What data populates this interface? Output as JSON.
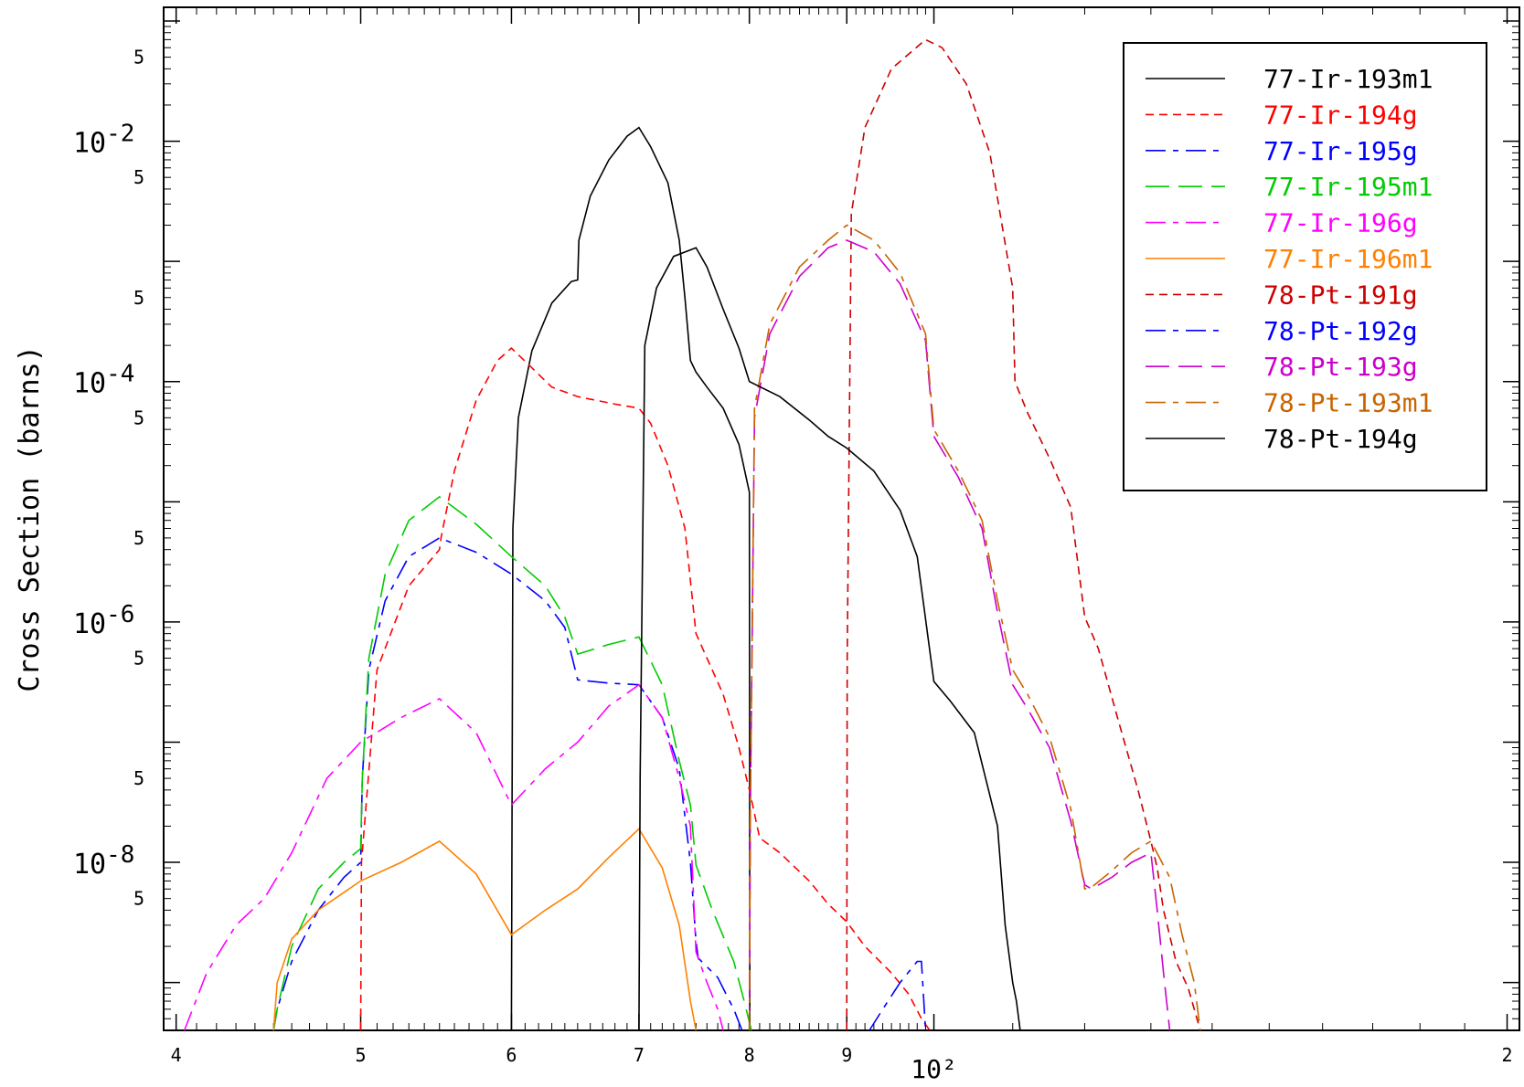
{
  "chart_data": {
    "type": "line",
    "title": "",
    "xlabel": "10²",
    "ylabel": "Cross Section (barns)",
    "x_scale": "log",
    "y_scale": "log",
    "xlim": [
      39.4,
      203
    ],
    "ylim": [
      4e-10,
      0.13
    ],
    "grid": false,
    "legend_position": "top-right",
    "x_tick_labels": [
      {
        "x": 40,
        "label": "4"
      },
      {
        "x": 50,
        "label": "5"
      },
      {
        "x": 60,
        "label": "6"
      },
      {
        "x": 70,
        "label": "7"
      },
      {
        "x": 80,
        "label": "8"
      },
      {
        "x": 90,
        "label": "9"
      },
      {
        "x": 100,
        "label": "10²"
      },
      {
        "x": 200,
        "label": "2"
      }
    ],
    "y_tick_labels": [
      {
        "y": 0.05,
        "label": "5"
      },
      {
        "y": 0.01,
        "label": "10-2"
      },
      {
        "y": 0.005,
        "label": "5"
      },
      {
        "y": 0.0005,
        "label": "5"
      },
      {
        "y": 0.0001,
        "label": "10-4"
      },
      {
        "y": 5e-05,
        "label": "5"
      },
      {
        "y": 5e-06,
        "label": "5"
      },
      {
        "y": 1e-06,
        "label": "10-6"
      },
      {
        "y": 5e-07,
        "label": "5"
      },
      {
        "y": 5e-08,
        "label": "5"
      },
      {
        "y": 1e-08,
        "label": "10-8"
      },
      {
        "y": 5e-09,
        "label": "5"
      }
    ],
    "series": [
      {
        "name": "77-Ir-193m1",
        "color": "#000000",
        "dash": "solid",
        "points": [
          [
            60,
            4e-10
          ],
          [
            60.1,
            6e-06
          ],
          [
            60.5,
            5e-05
          ],
          [
            61.5,
            0.00018
          ],
          [
            63,
            0.00045
          ],
          [
            64.5,
            0.00068
          ],
          [
            65,
            0.0007
          ],
          [
            65.1,
            0.0015
          ],
          [
            66,
            0.0035
          ],
          [
            67.5,
            0.007
          ],
          [
            69,
            0.011
          ],
          [
            70,
            0.013
          ],
          [
            71,
            0.009
          ],
          [
            72.5,
            0.0045
          ],
          [
            73.5,
            0.0015
          ],
          [
            74,
            0.0005
          ],
          [
            74.5,
            0.00015
          ],
          [
            75,
            0.00012
          ],
          [
            76,
            9e-05
          ],
          [
            77.5,
            6e-05
          ],
          [
            79,
            3e-05
          ],
          [
            80,
            1.2e-05
          ],
          [
            80.05,
            4e-10
          ]
        ]
      },
      {
        "name": "77-Ir-194g",
        "color": "#ff0000",
        "dash": "short",
        "points": [
          [
            50,
            4e-10
          ],
          [
            50.05,
            1e-08
          ],
          [
            51,
            4e-07
          ],
          [
            53,
            2e-06
          ],
          [
            55,
            4e-06
          ],
          [
            55.1,
            5e-06
          ],
          [
            56,
            1.8e-05
          ],
          [
            57.5,
            7e-05
          ],
          [
            59,
            0.00015
          ],
          [
            60,
            0.00019
          ],
          [
            61.5,
            0.00013
          ],
          [
            63,
            9e-05
          ],
          [
            65,
            7.5e-05
          ],
          [
            68,
            6.5e-05
          ],
          [
            70,
            6e-05
          ],
          [
            71,
            4.5e-05
          ],
          [
            72.5,
            2e-05
          ],
          [
            74,
            6e-06
          ],
          [
            75,
            8e-07
          ],
          [
            76,
            5e-07
          ],
          [
            77.5,
            2.5e-07
          ],
          [
            79,
            9e-08
          ],
          [
            80,
            4e-08
          ],
          [
            81,
            1.6e-08
          ],
          [
            83,
            1.2e-08
          ],
          [
            86,
            7e-09
          ],
          [
            88,
            4.5e-09
          ],
          [
            90,
            3.2e-09
          ],
          [
            92,
            2e-09
          ],
          [
            95,
            1.2e-09
          ],
          [
            97,
            8e-10
          ],
          [
            98.5,
            5e-10
          ],
          [
            99.5,
            4e-10
          ]
        ]
      },
      {
        "name": "77-Ir-195g",
        "color": "#0000ff",
        "dash": "dashdot",
        "points": [
          [
            45,
            4e-10
          ],
          [
            45.2,
            6e-10
          ],
          [
            46,
            1.5e-09
          ],
          [
            47.5,
            4e-09
          ],
          [
            49,
            7.5e-09
          ],
          [
            50,
            1e-08
          ],
          [
            50.1,
            5e-08
          ],
          [
            50.5,
            4e-07
          ],
          [
            51.5,
            1.5e-06
          ],
          [
            53,
            3.5e-06
          ],
          [
            55,
            5e-06
          ],
          [
            57.5,
            3.8e-06
          ],
          [
            60,
            2.5e-06
          ],
          [
            62.5,
            1.5e-06
          ],
          [
            64,
            9e-07
          ],
          [
            65,
            3.3e-07
          ],
          [
            67.5,
            3.1e-07
          ],
          [
            70,
            3e-07
          ],
          [
            72,
            1.6e-07
          ],
          [
            73.5,
            6e-08
          ],
          [
            74.5,
            1e-08
          ],
          [
            75,
            2.2e-09
          ],
          [
            75.2,
            1.6e-09
          ],
          [
            77,
            1.1e-09
          ],
          [
            78.5,
            6e-10
          ],
          [
            79.3,
            4e-10
          ]
        ]
      },
      {
        "name": "77-Ir-195m1",
        "color": "#00cc00",
        "dash": "long",
        "points": [
          [
            45,
            4e-10
          ],
          [
            45.2,
            6e-10
          ],
          [
            46,
            2e-09
          ],
          [
            47.5,
            6e-09
          ],
          [
            49,
            1e-08
          ],
          [
            50,
            1.3e-08
          ],
          [
            50.1,
            5e-08
          ],
          [
            50.5,
            5e-07
          ],
          [
            51.5,
            2.5e-06
          ],
          [
            53,
            7e-06
          ],
          [
            55,
            1.1e-05
          ],
          [
            57.5,
            6.5e-06
          ],
          [
            60,
            3.5e-06
          ],
          [
            62.5,
            2e-06
          ],
          [
            64,
            1.1e-06
          ],
          [
            65,
            5.4e-07
          ],
          [
            67.5,
            6.5e-07
          ],
          [
            70,
            7.5e-07
          ],
          [
            72,
            3e-07
          ],
          [
            73.5,
            7e-08
          ],
          [
            74.5,
            3e-08
          ],
          [
            75,
            9.5e-09
          ],
          [
            76.5,
            4e-09
          ],
          [
            78.5,
            1.5e-09
          ],
          [
            79.5,
            7e-10
          ],
          [
            80.2,
            4e-10
          ]
        ]
      },
      {
        "name": "77-Ir-196g",
        "color": "#ff00ff",
        "dash": "dashdot",
        "points": [
          [
            40.4,
            4e-10
          ],
          [
            41.5,
            1.2e-09
          ],
          [
            43,
            3e-09
          ],
          [
            44.5,
            5e-09
          ],
          [
            46,
            1.2e-08
          ],
          [
            48,
            5e-08
          ],
          [
            50,
            1e-07
          ],
          [
            52.5,
            1.6e-07
          ],
          [
            55,
            2.3e-07
          ],
          [
            57.5,
            1.2e-07
          ],
          [
            60,
            3e-08
          ],
          [
            62.5,
            6e-08
          ],
          [
            65,
            1e-07
          ],
          [
            67.5,
            2e-07
          ],
          [
            70,
            3e-07
          ],
          [
            72,
            1.6e-07
          ],
          [
            73.5,
            5e-08
          ],
          [
            74.5,
            2e-08
          ],
          [
            75,
            1.8e-09
          ],
          [
            75.2,
            1.6e-09
          ],
          [
            76,
            1e-09
          ],
          [
            77,
            6e-10
          ],
          [
            77.5,
            4e-10
          ]
        ]
      },
      {
        "name": "77-Ir-196m1",
        "color": "#ff8000",
        "dash": "solid",
        "points": [
          [
            45,
            4e-10
          ],
          [
            45.2,
            1e-09
          ],
          [
            46,
            2.3e-09
          ],
          [
            47.5,
            4e-09
          ],
          [
            50,
            7e-09
          ],
          [
            52.5,
            1e-08
          ],
          [
            55,
            1.5e-08
          ],
          [
            57.5,
            8e-09
          ],
          [
            60,
            2.5e-09
          ],
          [
            62.5,
            4e-09
          ],
          [
            65,
            6e-09
          ],
          [
            67.5,
            1.1e-08
          ],
          [
            70,
            1.9e-08
          ],
          [
            72,
            9e-09
          ],
          [
            73.5,
            3e-09
          ],
          [
            74.5,
            7e-10
          ],
          [
            75,
            4e-10
          ]
        ]
      },
      {
        "name": "78-Pt-191g",
        "color": "#cc0000",
        "dash": "short",
        "points": [
          [
            90,
            4e-10
          ],
          [
            90.05,
            5e-07
          ],
          [
            90.5,
            0.0025
          ],
          [
            92,
            0.013
          ],
          [
            95,
            0.04
          ],
          [
            99,
            0.07
          ],
          [
            101,
            0.06
          ],
          [
            104,
            0.03
          ],
          [
            107,
            0.008
          ],
          [
            110,
            0.0006
          ],
          [
            110.3,
            0.0001
          ],
          [
            112,
            5.5e-05
          ],
          [
            115,
            2.3e-05
          ],
          [
            118,
            9e-06
          ],
          [
            120,
            1.1e-06
          ],
          [
            122,
            6e-07
          ],
          [
            125,
            1.5e-07
          ],
          [
            128,
            4e-08
          ],
          [
            130,
            1.5e-08
          ],
          [
            131,
            9e-09
          ],
          [
            132,
            4e-09
          ],
          [
            134,
            1.5e-09
          ],
          [
            136,
            9e-10
          ],
          [
            137,
            6e-10
          ],
          [
            138,
            4e-10
          ]
        ]
      },
      {
        "name": "78-Pt-192g",
        "color": "#0000ff",
        "dash": "dashdot",
        "points": [
          [
            92.5,
            4e-10
          ],
          [
            94,
            6e-10
          ],
          [
            96,
            1e-09
          ],
          [
            98,
            1.5e-09
          ],
          [
            98.5,
            1.5e-09
          ],
          [
            99,
            4e-10
          ]
        ]
      },
      {
        "name": "78-Pt-193g",
        "color": "#cc00cc",
        "dash": "long",
        "points": [
          [
            80,
            4e-10
          ],
          [
            80.1,
            3e-08
          ],
          [
            80.5,
            5e-05
          ],
          [
            82,
            0.00025
          ],
          [
            85,
            0.00075
          ],
          [
            88,
            0.0013
          ],
          [
            90,
            0.0015
          ],
          [
            93,
            0.0012
          ],
          [
            96,
            0.00065
          ],
          [
            99,
            0.00022
          ],
          [
            100,
            3.5e-05
          ],
          [
            103,
            1.6e-05
          ],
          [
            106,
            6e-06
          ],
          [
            108,
            1.2e-06
          ],
          [
            110,
            3e-07
          ],
          [
            112,
            1.9e-07
          ],
          [
            115,
            9e-08
          ],
          [
            118,
            2.2e-08
          ],
          [
            120,
            6.5e-09
          ],
          [
            121,
            6e-09
          ],
          [
            124,
            7.5e-09
          ],
          [
            127,
            1e-08
          ],
          [
            130,
            1.2e-08
          ],
          [
            131,
            4e-09
          ],
          [
            132,
            1.2e-09
          ],
          [
            133,
            4e-10
          ]
        ]
      },
      {
        "name": "78-Pt-193m1",
        "color": "#c86400",
        "dash": "dashdot",
        "points": [
          [
            80,
            4e-10
          ],
          [
            80.1,
            3e-08
          ],
          [
            80.5,
            6e-05
          ],
          [
            82,
            0.0003
          ],
          [
            85,
            0.0009
          ],
          [
            88,
            0.0015
          ],
          [
            90,
            0.002
          ],
          [
            93,
            0.0015
          ],
          [
            96,
            0.0008
          ],
          [
            99,
            0.00025
          ],
          [
            100,
            4e-05
          ],
          [
            103,
            1.8e-05
          ],
          [
            106,
            7e-06
          ],
          [
            108,
            1.5e-06
          ],
          [
            110,
            4e-07
          ],
          [
            112,
            2.5e-07
          ],
          [
            115,
            1.1e-07
          ],
          [
            118,
            2.8e-08
          ],
          [
            120,
            6e-09
          ],
          [
            121,
            6.2e-09
          ],
          [
            124,
            8.5e-09
          ],
          [
            127,
            1.2e-08
          ],
          [
            130,
            1.5e-08
          ],
          [
            133,
            7.5e-09
          ],
          [
            135,
            2.5e-09
          ],
          [
            137,
            1e-09
          ],
          [
            138,
            4e-10
          ]
        ]
      },
      {
        "name": "78-Pt-194g",
        "color": "#000000",
        "dash": "solid",
        "points": [
          [
            70,
            4e-10
          ],
          [
            70.1,
            5e-08
          ],
          [
            70.5,
            0.0002
          ],
          [
            71.5,
            0.0006
          ],
          [
            73,
            0.0011
          ],
          [
            75,
            0.0013
          ],
          [
            76,
            0.0009
          ],
          [
            77.5,
            0.0004
          ],
          [
            79,
            0.00019
          ],
          [
            80,
            0.0001
          ],
          [
            83,
            7.5e-05
          ],
          [
            86,
            4.8e-05
          ],
          [
            88,
            3.5e-05
          ],
          [
            90,
            2.8e-05
          ],
          [
            93,
            1.8e-05
          ],
          [
            96,
            8.5e-06
          ],
          [
            98,
            3.5e-06
          ],
          [
            100,
            3.2e-07
          ],
          [
            102,
            2.2e-07
          ],
          [
            105,
            1.2e-07
          ],
          [
            108,
            2e-08
          ],
          [
            109,
            3e-09
          ],
          [
            110,
            1e-09
          ],
          [
            110.5,
            7e-10
          ],
          [
            111,
            4e-10
          ]
        ]
      }
    ]
  }
}
